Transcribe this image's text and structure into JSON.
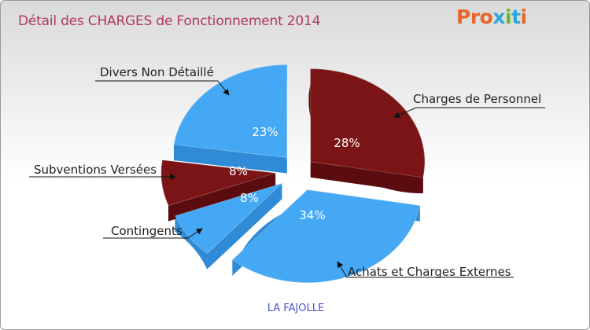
{
  "header": {
    "title": "Détail des CHARGES de Fonctionnement 2014",
    "logo_text": "Proxiti",
    "logo_colors": [
      "#e8652b",
      "#e8652b",
      "#e8652b",
      "#2fa6d9",
      "#69b52c",
      "#2fa6d9",
      "#e8652b"
    ]
  },
  "chart_data": {
    "type": "pie",
    "title": "Détail des CHARGES de Fonctionnement 2014",
    "subtitle": "LA FAJOLLE",
    "slices": [
      {
        "label": "Charges de Personnel",
        "value": 28,
        "value_label": "28%",
        "color": "#7a1416"
      },
      {
        "label": "Achats et Charges Externes",
        "value": 34,
        "value_label": "34%",
        "color": "#45a8f4"
      },
      {
        "label": "Contingents",
        "value": 8,
        "value_label": "8%",
        "color": "#45a8f4"
      },
      {
        "label": "Subventions Versées",
        "value": 8,
        "value_label": "8%",
        "color": "#7a1416"
      },
      {
        "label": "Divers Non Détaillé",
        "value": 23,
        "value_label": "23%",
        "color": "#45a8f4"
      }
    ],
    "side_colors": {
      "#7a1416": "#5a0c0e",
      "#45a8f4": "#2f8bd6"
    },
    "start_angle_deg": -90,
    "direction": "clockwise",
    "exploded": true
  }
}
